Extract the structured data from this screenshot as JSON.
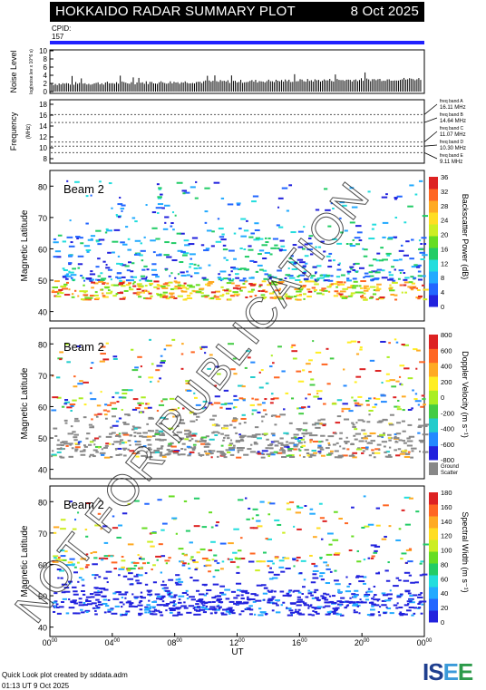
{
  "header": {
    "title": "HOKKAIDO RADAR SUMMARY PLOT",
    "date": "8 Oct 2025",
    "cpid_label": "CPID:",
    "cpid_value": "157"
  },
  "noise_panel": {
    "ylabel": "Noise Level",
    "ylabel_sub": "log(noise.lev x 10^6 s)",
    "ticks": [
      "0",
      "2",
      "4",
      "6",
      "8",
      "10"
    ]
  },
  "freq_panel": {
    "ylabel": "Frequency",
    "ylabel_sub": "(MHz)",
    "ticks": [
      "8",
      "10",
      "12",
      "14",
      "16",
      "18"
    ],
    "bands": [
      {
        "label": "freq band A",
        "value": "16.11 MHz"
      },
      {
        "label": "freq band B",
        "value": "14.64 MHz"
      },
      {
        "label": "freq band C",
        "value": "11.07 MHz"
      },
      {
        "label": "freq band D",
        "value": "10.30 MHz"
      },
      {
        "label": "freq band E",
        "value": "9.11 MHz"
      }
    ]
  },
  "beam_label": "Beam  2",
  "lat_ticks": [
    "40",
    "50",
    "60",
    "70",
    "80"
  ],
  "lat_label": "Magnetic Latitude",
  "colorbars": {
    "power": {
      "label": "Backscatter Power (dB)",
      "ticks": [
        "0",
        "4",
        "8",
        "12",
        "16",
        "20",
        "24",
        "28",
        "32",
        "36"
      ]
    },
    "velocity": {
      "label": "Doppler Velocity (m s⁻¹)",
      "ticks": [
        "-800",
        "-600",
        "-400",
        "-200",
        "0",
        "200",
        "400",
        "600",
        "800"
      ],
      "gs_label": "Ground",
      "gs_label2": "Scatter"
    },
    "width": {
      "label": "Spectral Width (m s⁻¹)",
      "ticks": [
        "0",
        "20",
        "40",
        "60",
        "80",
        "100",
        "120",
        "140",
        "160",
        "180"
      ]
    }
  },
  "x_axis": {
    "ticks": [
      {
        "h": "00",
        "m": "00"
      },
      {
        "h": "04",
        "m": "00"
      },
      {
        "h": "08",
        "m": "00"
      },
      {
        "h": "12",
        "m": "00"
      },
      {
        "h": "16",
        "m": "00"
      },
      {
        "h": "20",
        "m": "00"
      },
      {
        "h": "00",
        "m": "00"
      }
    ],
    "label": "UT"
  },
  "footer": {
    "line1": "Quick Look plot created by sddata.adm",
    "line2": "01:13 UT  9 Oct 2025",
    "logo_s": "IS",
    "logo_e1": "E",
    "logo_e2": "E"
  },
  "watermark": "NOT FOR PUBLICATION",
  "colors": {
    "cpid_bar": "#2020ff",
    "ground_scatter": "#888888"
  },
  "chart_data": {
    "type": "heatmap",
    "panels": [
      {
        "name": "Backscatter Power (dB)",
        "range": [
          0,
          36
        ],
        "ylim": [
          37,
          85
        ]
      },
      {
        "name": "Doppler Velocity (m s⁻¹)",
        "range": [
          -800,
          800
        ],
        "ylim": [
          37,
          85
        ]
      },
      {
        "name": "Spectral Width (m s⁻¹)",
        "range": [
          0,
          180
        ],
        "ylim": [
          37,
          85
        ]
      }
    ],
    "xlim": [
      "00:00",
      "24:00"
    ],
    "frequency_levels_mhz": [
      16.11,
      14.64,
      11.07,
      10.3,
      9.11
    ]
  }
}
